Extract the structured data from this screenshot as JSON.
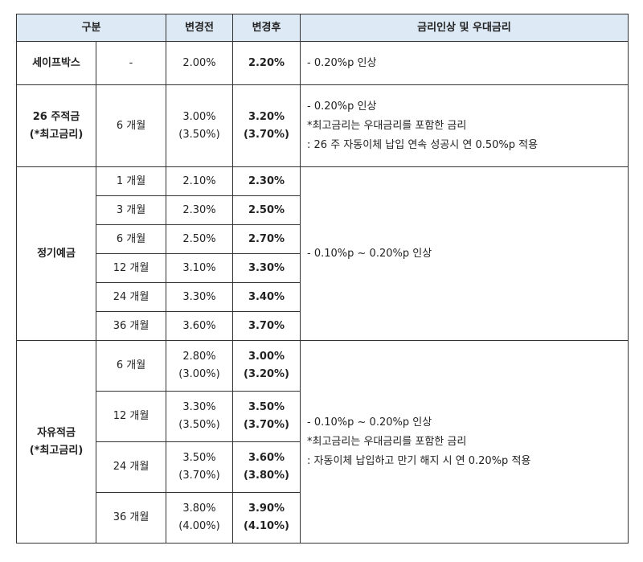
{
  "header": {
    "category": "구분",
    "before": "변경전",
    "after": "변경후",
    "note": "금리인상 및 우대금리"
  },
  "safebox": {
    "name": "세이프박스",
    "term": "-",
    "before": "2.00%",
    "after": "2.20%",
    "note": "- 0.20%p 인상"
  },
  "weekly26": {
    "name1": "26 주적금",
    "name2": "(*최고금리)",
    "term": "6 개월",
    "before1": "3.00%",
    "before2": "(3.50%)",
    "after1": "3.20%",
    "after2": "(3.70%)",
    "note1": "- 0.20%p 인상",
    "note2": "*최고금리는 우대금리를 포함한 금리",
    "note3": ": 26 주 자동이체 납입 연속 성공시 연 0.50%p 적용"
  },
  "deposit": {
    "name": "정기예금",
    "note": "- 0.10%p ~ 0.20%p 인상",
    "rows": [
      {
        "term": "1 개월",
        "before": "2.10%",
        "after": "2.30%"
      },
      {
        "term": "3 개월",
        "before": "2.30%",
        "after": "2.50%"
      },
      {
        "term": "6 개월",
        "before": "2.50%",
        "after": "2.70%"
      },
      {
        "term": "12 개월",
        "before": "3.10%",
        "after": "3.30%"
      },
      {
        "term": "24 개월",
        "before": "3.30%",
        "after": "3.40%"
      },
      {
        "term": "36 개월",
        "before": "3.60%",
        "after": "3.70%"
      }
    ]
  },
  "free": {
    "name1": "자유적금",
    "name2": "(*최고금리)",
    "note1": "- 0.10%p ~ 0.20%p 인상",
    "note2": "*최고금리는 우대금리를 포함한 금리",
    "note3": ": 자동이체 납입하고 만기 해지 시 연 0.20%p 적용",
    "rows": [
      {
        "term": "6 개월",
        "before1": "2.80%",
        "before2": "(3.00%)",
        "after1": "3.00%",
        "after2": "(3.20%)"
      },
      {
        "term": "12 개월",
        "before1": "3.30%",
        "before2": "(3.50%)",
        "after1": "3.50%",
        "after2": "(3.70%)"
      },
      {
        "term": "24 개월",
        "before1": "3.50%",
        "before2": "(3.70%)",
        "after1": "3.60%",
        "after2": "(3.80%)"
      },
      {
        "term": "36 개월",
        "before1": "3.80%",
        "before2": "(4.00%)",
        "after1": "3.90%",
        "after2": "(4.10%)"
      }
    ]
  }
}
